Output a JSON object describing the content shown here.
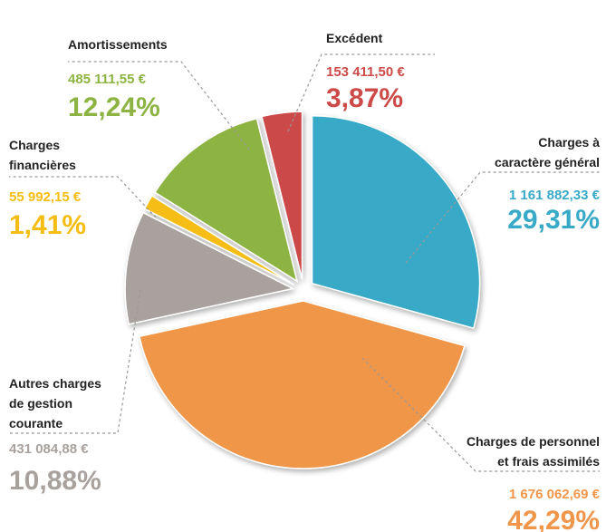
{
  "chart_data": {
    "type": "pie",
    "categories": [
      [
        "Charges à",
        "caractère général"
      ],
      [
        "Charges de personnel",
        "et frais assimilés"
      ],
      [
        "Autres charges",
        "de gestion",
        "courante"
      ],
      [
        "Charges",
        "financières"
      ],
      [
        "Amortissements"
      ],
      [
        "Excédent"
      ]
    ],
    "values": [
      29.31,
      42.29,
      10.88,
      1.41,
      12.24,
      3.87
    ],
    "value_labels": [
      "29,31%",
      "42,29%",
      "10,88%",
      "1,41%",
      "12,24%",
      "3,87%"
    ],
    "amount_labels": [
      "1 161 882,33 €",
      "1 676 062,69 €",
      "431 084,88 €",
      "55 992,15 €",
      "485 111,55 €",
      "153 411,50 €"
    ],
    "colors": [
      "#38a9c6",
      "#f0964a",
      "#a9a19d",
      "#f5bd12",
      "#8db443",
      "#cc4a48"
    ]
  }
}
